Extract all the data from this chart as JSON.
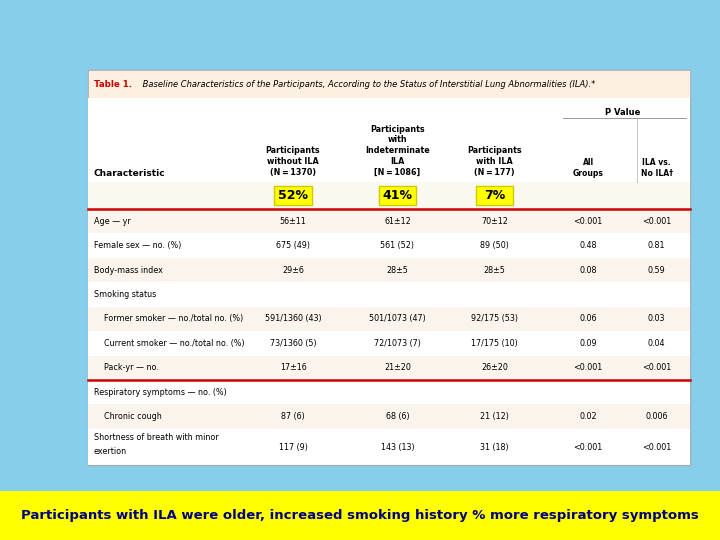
{
  "bg_color": "#87CEEB",
  "table_bg": "#FFFFFF",
  "highlight_yellow": "#FFFF00",
  "red_line_color": "#CC0000",
  "title_red": "#CC0000",
  "title_black": "#000000",
  "bottom_bar_color": "#FFFF00",
  "bottom_text_color": "#000080",
  "title_bold": "Table 1.",
  "title_italic": " Baseline Characteristics of the Participants, According to the Status of Interstitial Lung Abnormalities (ILA).*",
  "pct_labels": [
    "52%",
    "41%",
    "7%"
  ],
  "header_col1": "Characteristic",
  "header_col2": "Participants\nwithout ILA\n(N = 1370)",
  "header_col3": "Participants\nwith\nIndeterminate\nILA\n[N = 1086]",
  "header_col4": "Participants\nwith ILA\n(N = 177)",
  "header_pvalue": "P Value",
  "header_allgroups": "All\nGroups",
  "header_ilavsnola": "ILA vs.\nNo ILA†",
  "rows": [
    [
      "Age — yr",
      "56±11",
      "61±12",
      "70±12",
      "<0.001",
      "<0.001"
    ],
    [
      "Female sex — no. (%)",
      "675 (49)",
      "561 (52)",
      "89 (50)",
      "0.48",
      "0.81"
    ],
    [
      "Body-mass index",
      "29±6",
      "28±5",
      "28±5",
      "0.08",
      "0.59"
    ],
    [
      "Smoking status",
      "",
      "",
      "",
      "",
      ""
    ],
    [
      "    Former smoker — no./total no. (%)",
      "591/1360 (43)",
      "501/1073 (47)",
      "92/175 (53)",
      "0.06",
      "0.03"
    ],
    [
      "    Current smoker — no./total no. (%)",
      "73/1360 (5)",
      "72/1073 (7)",
      "17/175 (10)",
      "0.09",
      "0.04"
    ],
    [
      "    Pack-yr — no.",
      "17±16",
      "21±20",
      "26±20",
      "<0.001",
      "<0.001"
    ],
    [
      "Respiratory symptoms — no. (%)",
      "",
      "",
      "",
      "",
      ""
    ],
    [
      "    Chronic cough",
      "87 (6)",
      "68 (6)",
      "21 (12)",
      "0.02",
      "0.006"
    ],
    [
      "    Shortness of breath with minor\n        exertion",
      "117 (9)",
      "143 (13)",
      "31 (18)",
      "<0.001",
      "<0.001"
    ]
  ],
  "red_line_after": [
    0,
    7
  ],
  "bottom_caption": "Participants with ILA were older, increased smoking history % more respiratory symptoms"
}
